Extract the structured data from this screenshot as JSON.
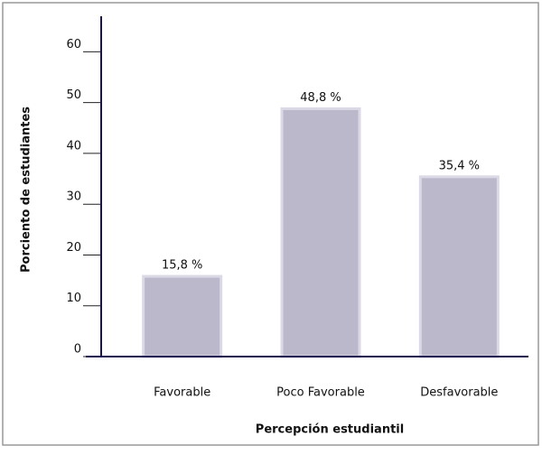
{
  "chart_data": {
    "type": "bar",
    "x_label": "Percepción estudiantil",
    "y_label": "Porciento de estudiantes",
    "categories": [
      "Favorable",
      "Poco Favorable",
      "Desfavorable"
    ],
    "values": [
      15.8,
      48.8,
      35.4
    ],
    "value_labels": [
      "15,8 %",
      "48,8 %",
      "35,4 %"
    ],
    "color": "#bcb8cb",
    "ylim": [
      0,
      67
    ],
    "yticks": [
      0,
      10,
      20,
      30,
      40,
      50,
      60
    ],
    "grid": false
  }
}
